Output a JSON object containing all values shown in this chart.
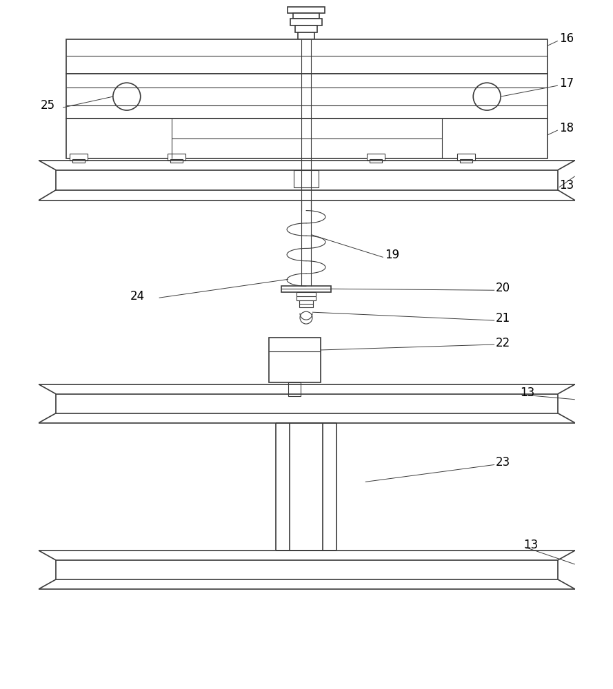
{
  "bg_color": "#ffffff",
  "lc": "#3a3a3a",
  "lw": 1.2,
  "tlw": 0.8
}
